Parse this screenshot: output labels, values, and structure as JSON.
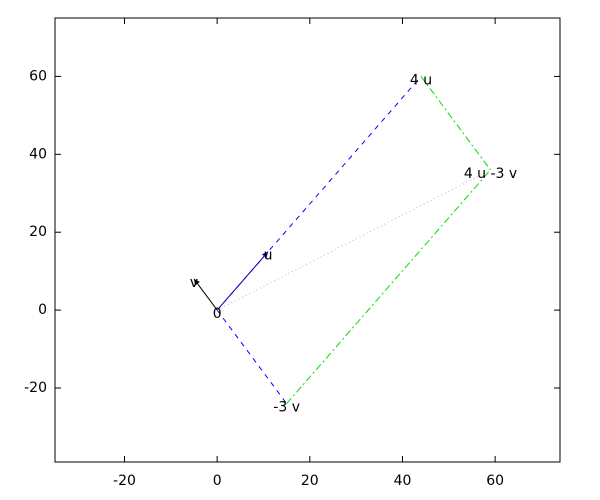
{
  "chart_data": {
    "type": "vector",
    "xlim": [
      -35,
      74
    ],
    "ylim": [
      -39,
      75
    ],
    "xticks": [
      -20,
      0,
      20,
      40,
      60
    ],
    "yticks": [
      -20,
      0,
      20,
      40,
      60
    ],
    "series": [
      {
        "color": "#00008b",
        "dash": "solid",
        "arrow": true,
        "x": [
          0,
          11
        ],
        "y": [
          0,
          15
        ]
      },
      {
        "color": "#000000",
        "dash": "solid",
        "arrow": true,
        "x": [
          0,
          -5
        ],
        "y": [
          0,
          8
        ]
      },
      {
        "color": "#0000ff",
        "dash": "dashed",
        "arrow": false,
        "x": [
          0,
          44
        ],
        "y": [
          0,
          60
        ]
      },
      {
        "color": "#0000ff",
        "dash": "dashed",
        "arrow": false,
        "x": [
          0,
          15
        ],
        "y": [
          0,
          -24
        ]
      },
      {
        "color": "#00dd00",
        "dash": "dashdot",
        "arrow": false,
        "x": [
          44,
          59
        ],
        "y": [
          60,
          36
        ]
      },
      {
        "color": "#00dd00",
        "dash": "dashdot",
        "arrow": false,
        "x": [
          15,
          59
        ],
        "y": [
          -24,
          36
        ]
      },
      {
        "color": "#ff9999",
        "dash": "dotted",
        "arrow": false,
        "x": [
          0,
          59
        ],
        "y": [
          0,
          36
        ]
      }
    ],
    "annotations": [
      {
        "text": "0",
        "x": 0,
        "y": 0
      },
      {
        "text": "u",
        "x": 11,
        "y": 15
      },
      {
        "text": "v",
        "x": -5,
        "y": 8
      },
      {
        "text": "4 u",
        "x": 44,
        "y": 60
      },
      {
        "text": "-3 v",
        "x": 15,
        "y": -24
      },
      {
        "text": "4 u -3 v",
        "x": 59,
        "y": 36
      }
    ]
  }
}
